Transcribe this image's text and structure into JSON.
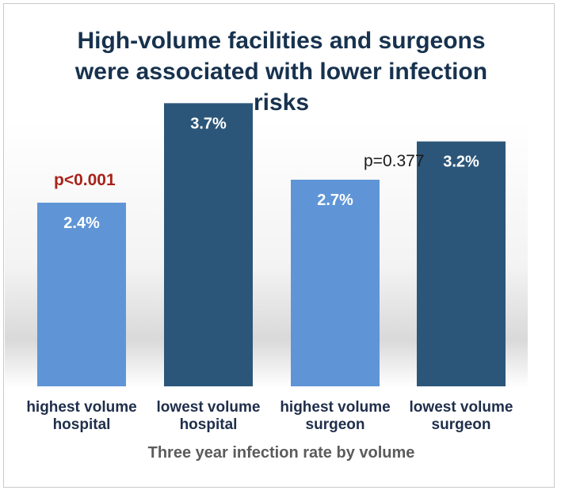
{
  "chart_data": {
    "type": "bar",
    "title": "High-volume facilities and surgeons were associated with lower infection risks",
    "categories": [
      "highest volume hospital",
      "lowest volume hospital",
      "highest volume surgeon",
      "lowest volume surgeon"
    ],
    "category_lines": [
      [
        "highest volume",
        "hospital"
      ],
      [
        "lowest volume",
        "hospital"
      ],
      [
        "highest volume",
        "surgeon"
      ],
      [
        "lowest volume",
        "surgeon"
      ]
    ],
    "values": [
      2.4,
      3.7,
      2.7,
      3.2
    ],
    "value_labels": [
      "2.4%",
      "3.7%",
      "2.7%",
      "3.2%"
    ],
    "colors": [
      "#5f95d6",
      "#2c5679",
      "#5f95d6",
      "#2c5679"
    ],
    "xlabel": "Three year infection rate by volume",
    "ylabel": "",
    "ylim": [
      0,
      4.2
    ],
    "grid": false,
    "legend": "none",
    "annotations": [
      {
        "text": "p<0.001",
        "color": "#a8231b"
      },
      {
        "text": "p=0.377",
        "color": "#1a1a1a"
      }
    ]
  }
}
